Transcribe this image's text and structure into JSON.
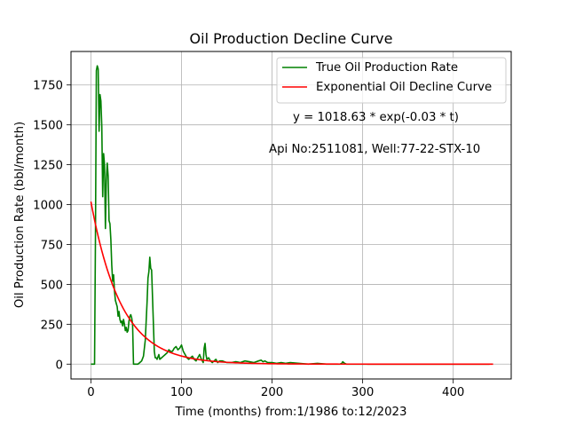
{
  "chart_data": {
    "type": "line",
    "title": "Oil Production Decline Curve",
    "xlabel": "Time (months) from:1/1986 to:12/2023",
    "ylabel": "Oil Production Rate (bbl/month)",
    "xlim": [
      -22,
      464
    ],
    "ylim": [
      -93,
      1960
    ],
    "xticks": [
      0,
      100,
      200,
      300,
      400
    ],
    "yticks": [
      0,
      250,
      500,
      750,
      1000,
      1250,
      1500,
      1750
    ],
    "grid": true,
    "legend_position": "top-right",
    "annotations": [
      "y = 1018.63 * exp(-0.03 * t)",
      "Api No:2511081, Well:77-22-STX-10"
    ],
    "series": [
      {
        "name": "True Oil Production Rate",
        "color": "#008000",
        "x": [
          0,
          4,
          5,
          6,
          7,
          8,
          9,
          10,
          11,
          12,
          13,
          14,
          15,
          16,
          17,
          18,
          19,
          20,
          21,
          22,
          23,
          24,
          25,
          26,
          27,
          28,
          29,
          30,
          31,
          32,
          33,
          34,
          35,
          36,
          37,
          38,
          39,
          40,
          41,
          42,
          43,
          44,
          45,
          46,
          47,
          48,
          49,
          50,
          52,
          54,
          56,
          58,
          60,
          62,
          63,
          64,
          65,
          66,
          67,
          68,
          69,
          70,
          71,
          72,
          73,
          74,
          75,
          76,
          78,
          80,
          82,
          84,
          86,
          88,
          90,
          92,
          94,
          96,
          98,
          100,
          102,
          104,
          106,
          108,
          110,
          112,
          114,
          116,
          118,
          120,
          122,
          124,
          125,
          126,
          127,
          128,
          130,
          132,
          134,
          136,
          138,
          140,
          142,
          145,
          150,
          155,
          160,
          165,
          170,
          175,
          180,
          185,
          188,
          190,
          192,
          195,
          200,
          205,
          210,
          215,
          220,
          230,
          240,
          250,
          260,
          270,
          275,
          277,
          278,
          279,
          280,
          282,
          290,
          300,
          320,
          340,
          360,
          380,
          385,
          400,
          420,
          440
        ],
        "y": [
          0,
          0,
          800,
          1840,
          1870,
          1850,
          1460,
          1690,
          1650,
          1490,
          1050,
          1320,
          1250,
          850,
          1150,
          1260,
          1180,
          900,
          880,
          780,
          620,
          520,
          560,
          460,
          400,
          380,
          360,
          300,
          330,
          280,
          260,
          270,
          240,
          280,
          250,
          210,
          230,
          200,
          210,
          270,
          300,
          310,
          290,
          250,
          0,
          0,
          0,
          0,
          0,
          10,
          20,
          50,
          150,
          390,
          540,
          580,
          670,
          600,
          590,
          420,
          250,
          80,
          40,
          40,
          30,
          45,
          60,
          30,
          40,
          50,
          60,
          70,
          90,
          80,
          80,
          100,
          110,
          90,
          100,
          120,
          80,
          60,
          40,
          30,
          40,
          50,
          30,
          20,
          40,
          60,
          30,
          10,
          100,
          130,
          60,
          30,
          40,
          20,
          10,
          20,
          30,
          10,
          20,
          20,
          10,
          10,
          15,
          10,
          20,
          15,
          10,
          20,
          25,
          15,
          20,
          10,
          10,
          5,
          10,
          5,
          10,
          5,
          0,
          5,
          0,
          0,
          0,
          5,
          15,
          10,
          5,
          0,
          0,
          0,
          0,
          0,
          0,
          0,
          0,
          0,
          0,
          0
        ]
      },
      {
        "name": "Exponential Oil Decline Curve",
        "color": "#ff0000",
        "model": {
          "a": 1018.63,
          "b": 0.03,
          "x_start": 0,
          "x_end": 444
        }
      }
    ]
  }
}
